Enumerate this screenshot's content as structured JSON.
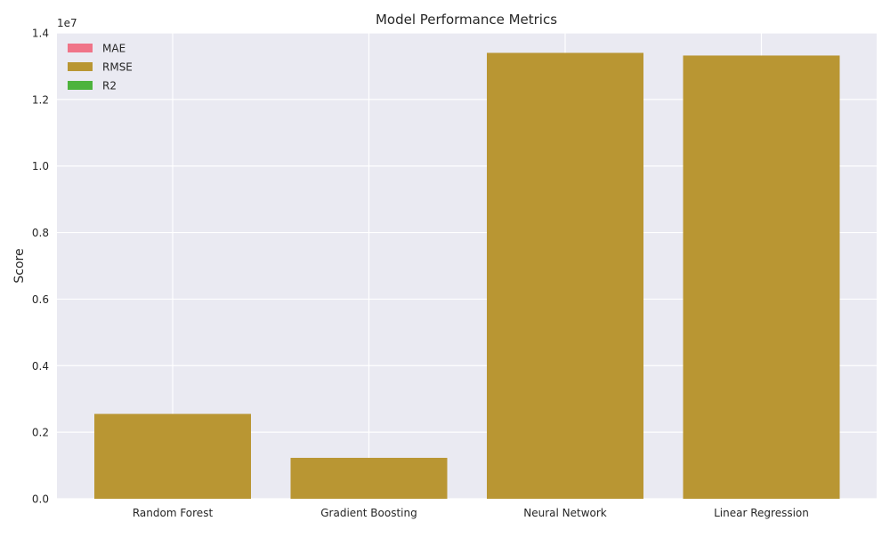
{
  "chart_data": {
    "type": "bar",
    "title": "Model Performance Metrics",
    "xlabel": "",
    "ylabel": "Score",
    "y_offset_label": "1e7",
    "y_scale": 10000000,
    "categories": [
      "Random Forest",
      "Gradient Boosting",
      "Neural Network",
      "Linear Regression"
    ],
    "ylim": [
      0,
      14000000
    ],
    "yticks": [
      0,
      2000000,
      4000000,
      6000000,
      8000000,
      10000000,
      12000000,
      14000000
    ],
    "ytick_labels": [
      "0.0",
      "0.2",
      "0.4",
      "0.6",
      "0.8",
      "1.0",
      "1.2",
      "1.4"
    ],
    "grid": true,
    "legend_position": "top-left",
    "series": [
      {
        "name": "MAE",
        "color": "#f07488",
        "values": [
          0,
          0,
          0,
          0
        ]
      },
      {
        "name": "RMSE",
        "color": "#b99633",
        "values": [
          2550000,
          1230000,
          13400000,
          13320000
        ]
      },
      {
        "name": "R2",
        "color": "#4db33d",
        "values": [
          0.85,
          0.9,
          0.7,
          0.6
        ]
      }
    ]
  }
}
